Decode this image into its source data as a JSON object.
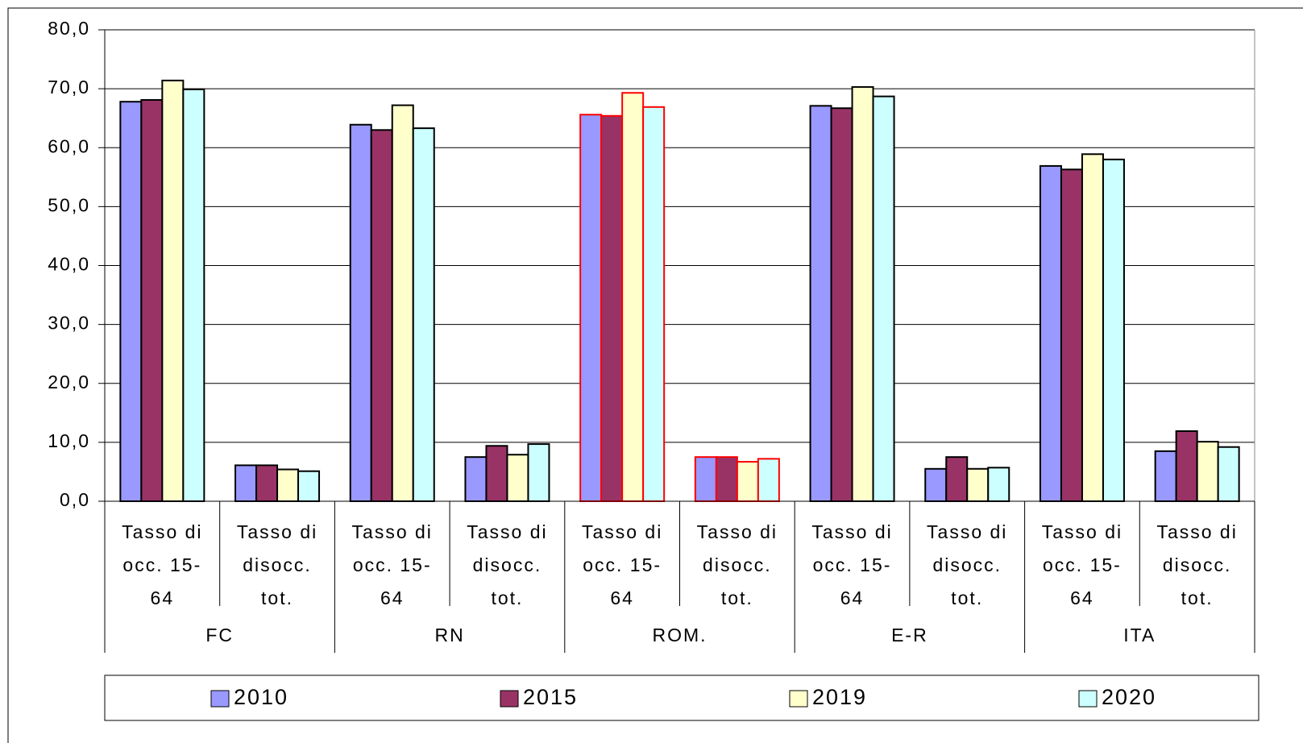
{
  "chart_data": {
    "type": "bar",
    "groups": [
      {
        "name": "FC",
        "edgecolor": "#000000",
        "categories": [
          "Tasso di occ. 15-64",
          "Tasso di disocc. tot."
        ]
      },
      {
        "name": "RN",
        "edgecolor": "#000000",
        "categories": [
          "Tasso di occ. 15-64",
          "Tasso di disocc. tot."
        ]
      },
      {
        "name": "ROM.",
        "edgecolor": "#ff0000",
        "categories": [
          "Tasso di occ. 15-64",
          "Tasso di disocc. tot."
        ]
      },
      {
        "name": "E-R",
        "edgecolor": "#000000",
        "categories": [
          "Tasso di occ. 15-64",
          "Tasso di disocc. tot."
        ]
      },
      {
        "name": "ITA",
        "edgecolor": "#000000",
        "categories": [
          "Tasso di occ. 15-64",
          "Tasso di disocc. tot."
        ]
      }
    ],
    "series": [
      {
        "name": "2010",
        "color": "#9999ff",
        "values": [
          67.8,
          6.1,
          63.9,
          7.5,
          65.6,
          7.5,
          67.1,
          5.5,
          56.9,
          8.5
        ]
      },
      {
        "name": "2015",
        "color": "#993366",
        "values": [
          68.1,
          6.1,
          63.0,
          9.4,
          65.4,
          7.5,
          66.7,
          7.5,
          56.3,
          11.9
        ]
      },
      {
        "name": "2019",
        "color": "#ffffcc",
        "values": [
          71.4,
          5.4,
          67.2,
          7.9,
          69.3,
          6.7,
          70.3,
          5.5,
          58.9,
          10.1
        ]
      },
      {
        "name": "2020",
        "color": "#ccffff",
        "values": [
          69.9,
          5.1,
          63.3,
          9.7,
          66.9,
          7.2,
          68.7,
          5.7,
          58.0,
          9.2
        ]
      }
    ],
    "ylim": [
      0,
      80
    ],
    "yticks": [
      {
        "value": 0,
        "label": "0,0"
      },
      {
        "value": 10,
        "label": "10,0"
      },
      {
        "value": 20,
        "label": "20,0"
      },
      {
        "value": 30,
        "label": "30,0"
      },
      {
        "value": 40,
        "label": "40,0"
      },
      {
        "value": 50,
        "label": "50,0"
      },
      {
        "value": 60,
        "label": "60,0"
      },
      {
        "value": 70,
        "label": "70,0"
      },
      {
        "value": 80,
        "label": "80,0"
      }
    ],
    "grid": true,
    "legend": "bottom"
  }
}
